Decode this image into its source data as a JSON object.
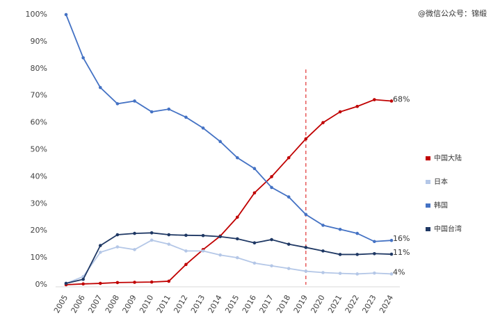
{
  "chart_data": {
    "type": "line",
    "watermark": "@微信公众号：锦缎",
    "categories": [
      "2005",
      "2006",
      "2007",
      "2008",
      "2009",
      "2010",
      "2011",
      "2012",
      "2013",
      "2014",
      "2015",
      "2016",
      "2017",
      "2018",
      "2019",
      "2020",
      "2021",
      "2022",
      "2023",
      "2024"
    ],
    "series": [
      {
        "name": "中国大陆",
        "color": "#c00000",
        "values": [
          0,
          0.3,
          0.5,
          0.8,
          0.9,
          1,
          1.3,
          7.5,
          13,
          18,
          25,
          34,
          40,
          47,
          54,
          60,
          64,
          66,
          68.5,
          68
        ],
        "end_label": "68%"
      },
      {
        "name": "日本",
        "color": "#b4c7e7",
        "values": [
          0.5,
          3,
          12,
          14,
          13,
          16.5,
          15,
          12.5,
          12.5,
          11,
          10,
          8,
          7,
          6,
          5,
          4.5,
          4.2,
          4,
          4.3,
          4
        ],
        "end_label": "4%"
      },
      {
        "name": "韩国",
        "color": "#4472c4",
        "values": [
          100,
          84,
          73,
          67,
          68,
          64,
          65,
          62,
          58,
          53,
          47,
          43,
          36,
          32.5,
          26,
          22,
          20.5,
          19,
          16,
          16.4
        ],
        "end_label": "16%"
      },
      {
        "name": "中国台湾",
        "color": "#1f3864",
        "values": [
          0.5,
          2,
          14.5,
          18.5,
          19,
          19.2,
          18.5,
          18.3,
          18.2,
          17.8,
          17,
          15.5,
          16.7,
          15,
          13.8,
          12.5,
          11.2,
          11.2,
          11.5,
          11.3
        ],
        "end_label": "11%"
      }
    ],
    "reference_line": "2019",
    "ylim": [
      0,
      100
    ],
    "yticks": [
      {
        "value": 0,
        "label": "0%"
      },
      {
        "value": 10,
        "label": "10%"
      },
      {
        "value": 20,
        "label": "20%"
      },
      {
        "value": 30,
        "label": "30%"
      },
      {
        "value": 40,
        "label": "40%"
      },
      {
        "value": 50,
        "label": "50%"
      },
      {
        "value": 60,
        "label": "60%"
      },
      {
        "value": 70,
        "label": "70%"
      },
      {
        "value": 80,
        "label": "80%"
      },
      {
        "value": 90,
        "label": "90%"
      },
      {
        "value": 100,
        "label": "100%"
      }
    ],
    "legend": "right"
  }
}
